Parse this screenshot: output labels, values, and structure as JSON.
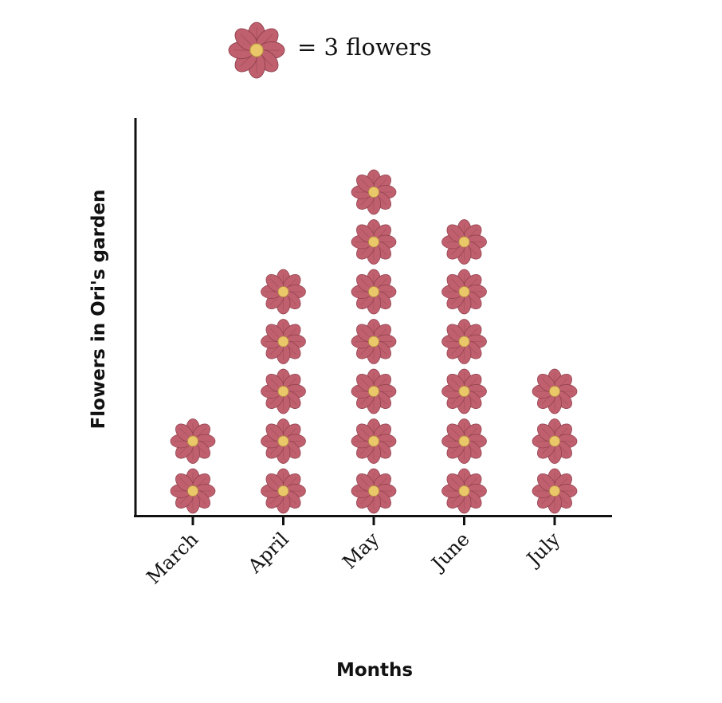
{
  "chart_data": {
    "type": "pictograph",
    "legend": {
      "text": "= 3 flowers",
      "icon": "flower-icon",
      "value_per_icon": 3
    },
    "categories": [
      "March",
      "April",
      "May",
      "June",
      "July"
    ],
    "icon_counts": [
      2,
      5,
      7,
      6,
      3
    ],
    "values": [
      6,
      15,
      21,
      18,
      9
    ],
    "xlabel": "Months",
    "ylabel": "Flowers in Ori's garden",
    "colors": {
      "petal": "#c0606e",
      "petal_vein": "#8e3e4b",
      "center": "#eac86a",
      "axis": "#111111"
    }
  }
}
